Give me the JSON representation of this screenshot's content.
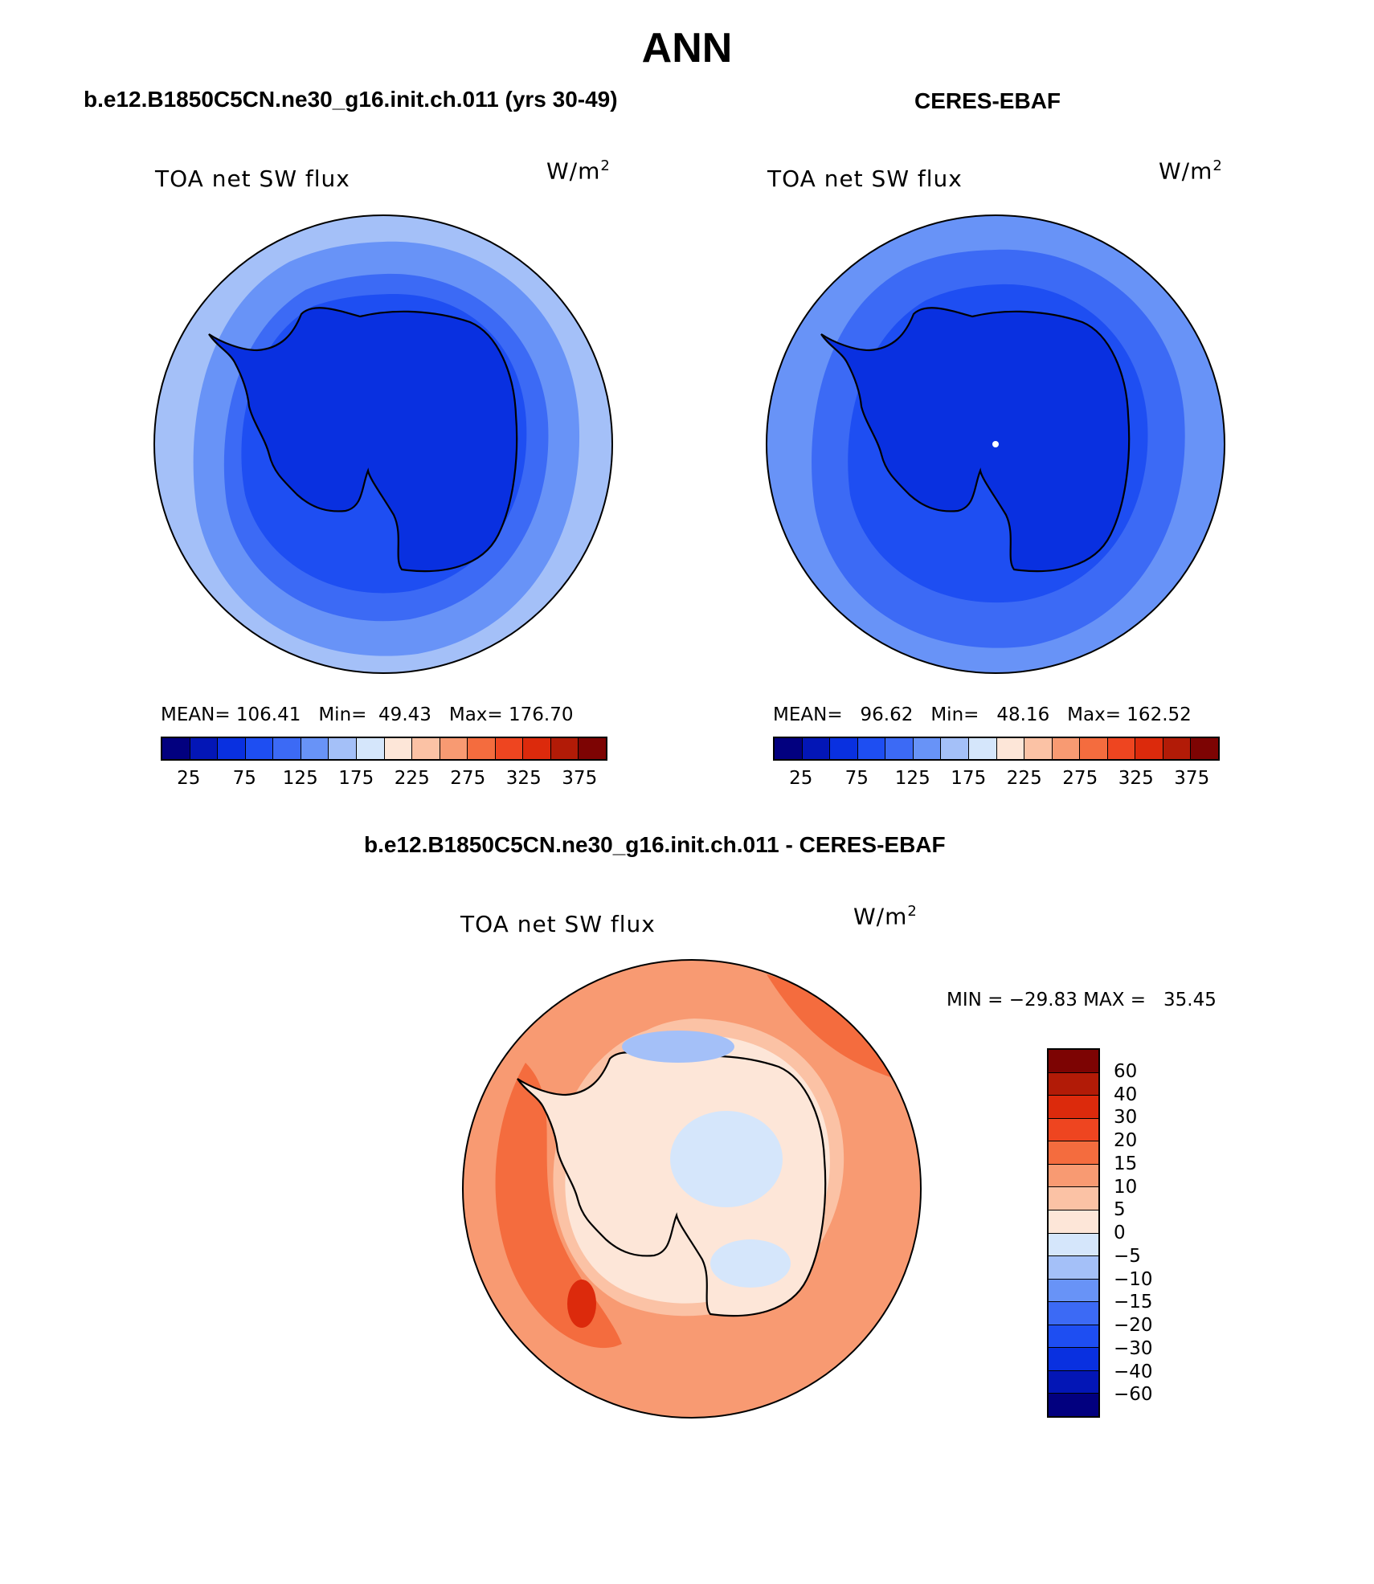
{
  "title": "ANN",
  "panels": [
    {
      "title": "b.e12.B1850C5CN.ne30_g16.init.ch.011 (yrs 30-49)",
      "variable": "TOA net SW flux",
      "units_base": "W/m",
      "units_exp": "2",
      "stats": {
        "mean_label": "MEAN=",
        "mean": "106.41",
        "min_label": "Min=",
        "min": "49.43",
        "max_label": "Max=",
        "max": "176.70"
      }
    },
    {
      "title": "CERES-EBAF",
      "variable": "TOA net SW flux",
      "units_base": "W/m",
      "units_exp": "2",
      "stats": {
        "mean_label": "MEAN=",
        "mean": "96.62",
        "min_label": "Min=",
        "min": "48.16",
        "max_label": "Max=",
        "max": "162.52"
      }
    },
    {
      "title": "b.e12.B1850C5CN.ne30_g16.init.ch.011 - CERES-EBAF",
      "variable": "TOA net SW flux",
      "units_base": "W/m",
      "units_exp": "2",
      "stats_text": "MIN = −29.83 MAX =   35.45"
    }
  ],
  "colorbar_abs": {
    "colors": [
      "#02007f",
      "#0316b6",
      "#0930e0",
      "#1e4ef2",
      "#3c6af5",
      "#6893f7",
      "#a4c0f8",
      "#d5e6fb",
      "#fde6d8",
      "#fbc2a5",
      "#f89a72",
      "#f46c3e",
      "#ee4520",
      "#dc2a0c",
      "#b21b07",
      "#7d0403"
    ],
    "labels": [
      "25",
      "75",
      "125",
      "175",
      "225",
      "275",
      "325",
      "375"
    ]
  },
  "colorbar_diff": {
    "colors": [
      "#7d0403",
      "#b21b07",
      "#dc2a0c",
      "#ee4520",
      "#f46c3e",
      "#f89a72",
      "#fbc2a5",
      "#fde6d8",
      "#d5e6fb",
      "#a4c0f8",
      "#6893f7",
      "#3c6af5",
      "#1e4ef2",
      "#0930e0",
      "#0316b6",
      "#02007f"
    ],
    "labels": [
      "60",
      "40",
      "30",
      "20",
      "15",
      "10",
      "5",
      "0",
      "−5",
      "−10",
      "−15",
      "−20",
      "−30",
      "−40",
      "−60"
    ]
  },
  "map_colors": {
    "ring_outer_1": "#a4c0f8",
    "ring_mid_1": "#6893f7",
    "ring_inner_1": "#3c6af5",
    "ring_core_1": "#1e4ef2",
    "continent_1": "#0930e0",
    "ring_outer_2": "#6893f7",
    "ring_mid_2": "#3c6af5",
    "ring_inner_2": "#1e4ef2",
    "continent_2": "#0930e0",
    "diff_ocean": "#f89a72",
    "diff_warm": "#f46c3e",
    "diff_pale": "#fbc2a5",
    "diff_ice": "#fde6d8",
    "diff_blue": "#d5e6fb",
    "diff_blue2": "#a4c0f8",
    "diff_hot": "#dc2a0c"
  }
}
